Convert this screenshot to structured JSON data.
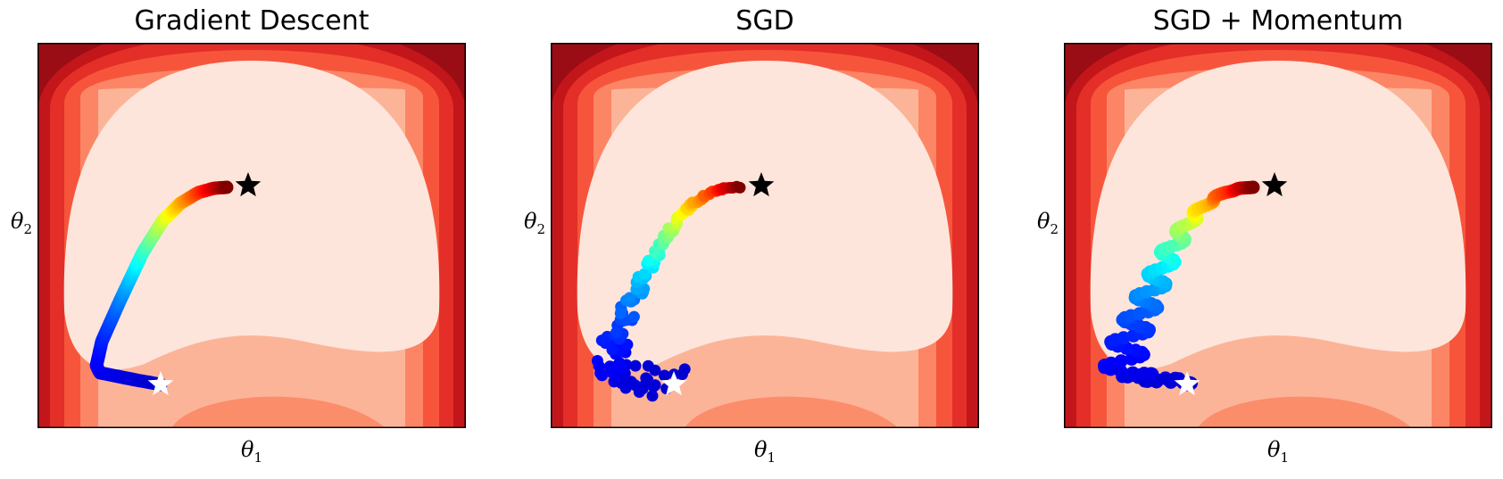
{
  "chart_data": [
    {
      "type": "contour",
      "title": "Gradient Descent",
      "xlabel": "θ",
      "xlabel_sub": "1",
      "ylabel": "θ",
      "ylabel_sub": "2",
      "ticks": "none",
      "colormap": "Reds",
      "start_marker": {
        "symbol": "star",
        "color": "#ffffff"
      },
      "optimum_marker": {
        "symbol": "star",
        "color": "#000000"
      },
      "trajectory_colormap": "jet",
      "trajectory_style": "smooth"
    },
    {
      "type": "contour",
      "title": "SGD",
      "xlabel": "θ",
      "xlabel_sub": "1",
      "ylabel": "θ",
      "ylabel_sub": "2",
      "ticks": "none",
      "colormap": "Reds",
      "start_marker": {
        "symbol": "star",
        "color": "#ffffff"
      },
      "optimum_marker": {
        "symbol": "star",
        "color": "#000000"
      },
      "trajectory_colormap": "jet",
      "trajectory_style": "noisy"
    },
    {
      "type": "contour",
      "title": "SGD + Momentum",
      "xlabel": "θ",
      "xlabel_sub": "1",
      "ylabel": "θ",
      "ylabel_sub": "2",
      "ticks": "none",
      "colormap": "Reds",
      "start_marker": {
        "symbol": "star",
        "color": "#ffffff"
      },
      "optimum_marker": {
        "symbol": "star",
        "color": "#000000"
      },
      "trajectory_colormap": "jet",
      "trajectory_style": "oscillating"
    }
  ]
}
